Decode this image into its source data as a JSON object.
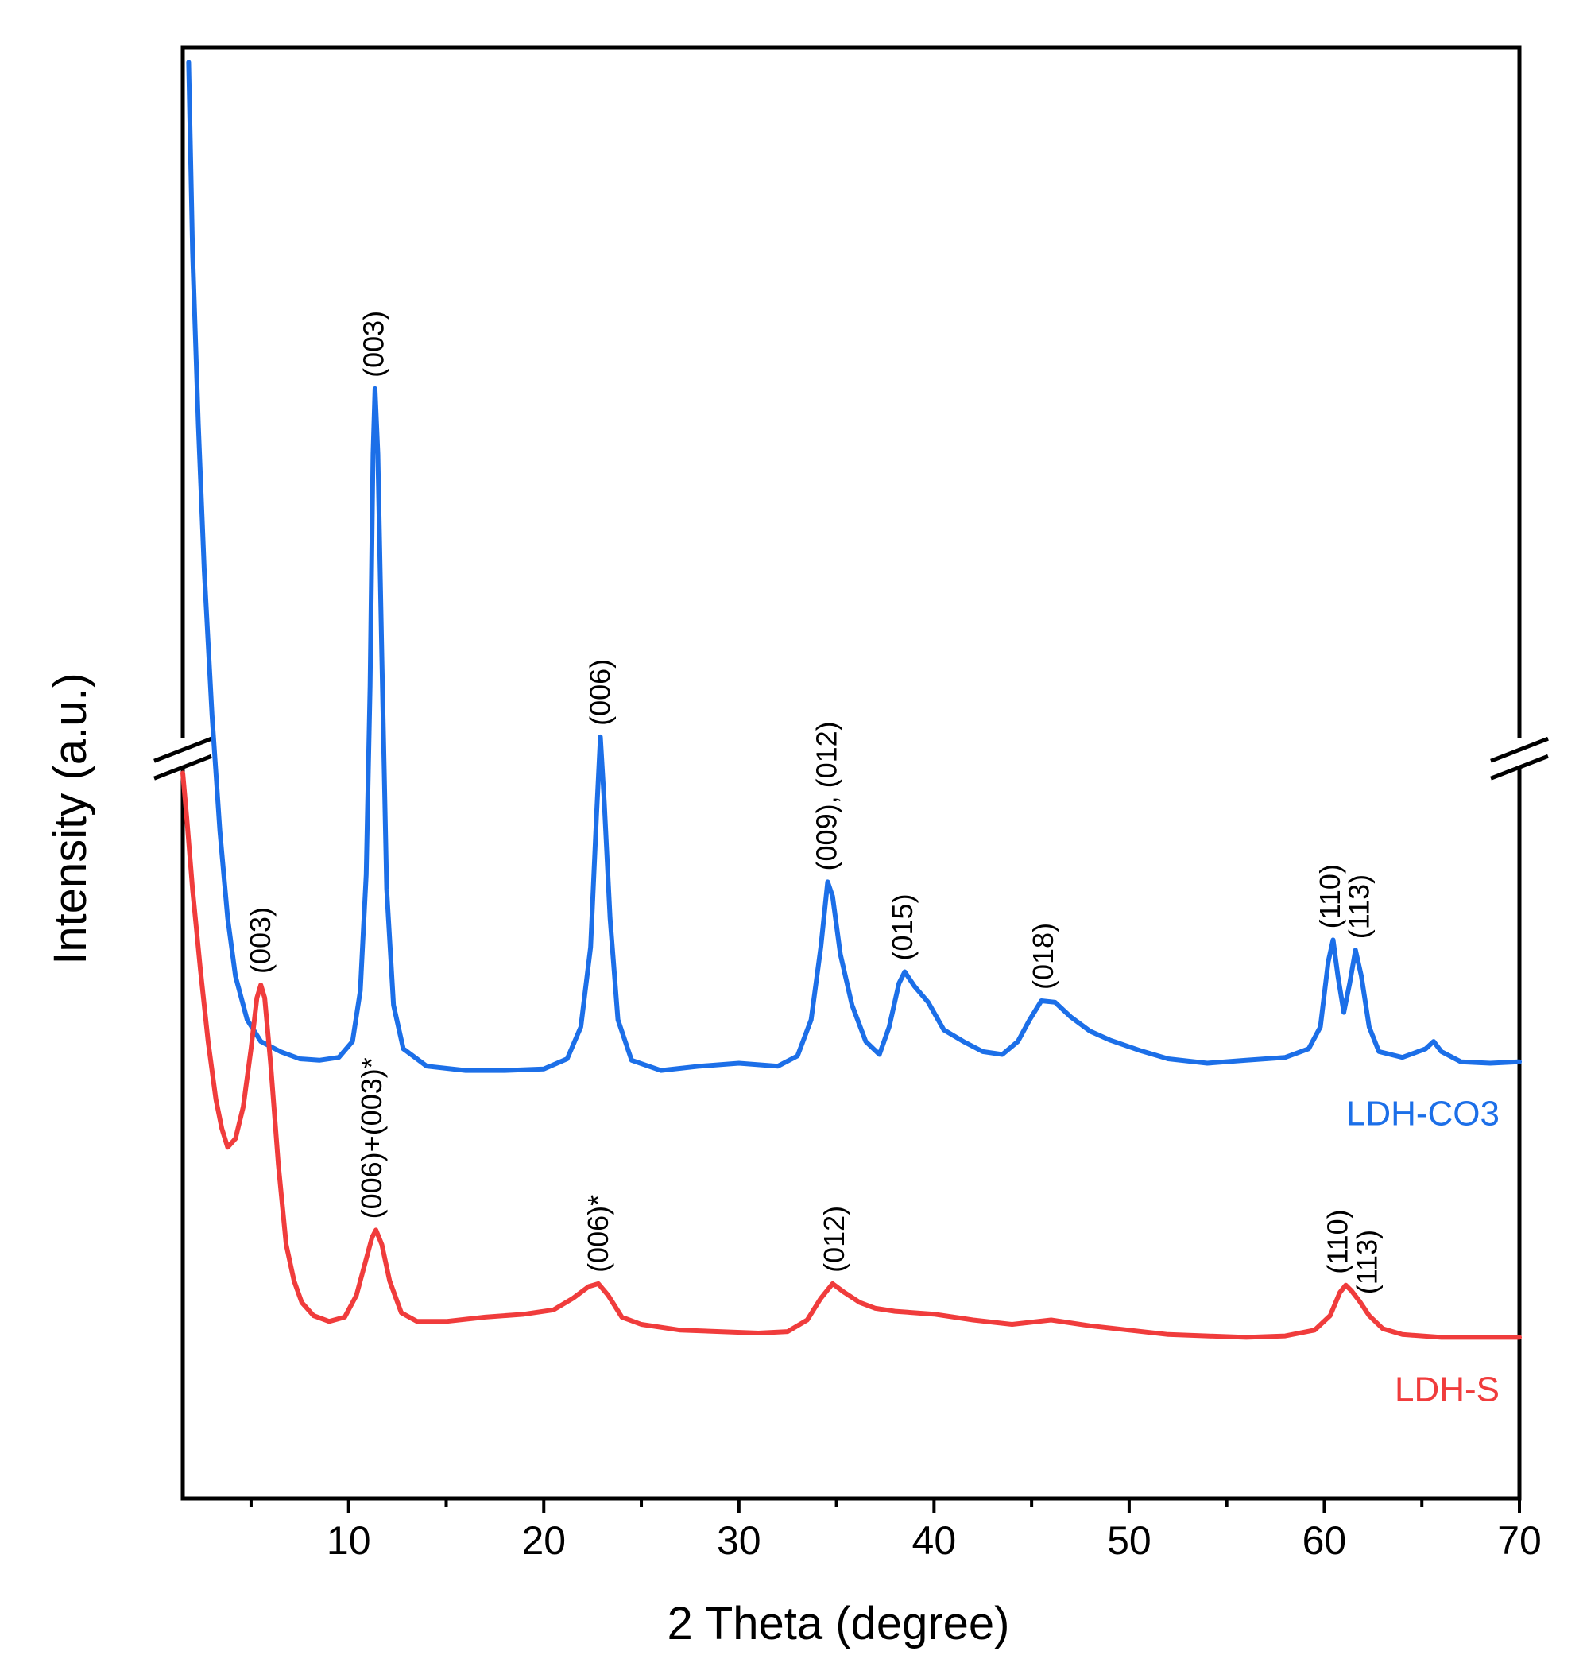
{
  "chart_data": {
    "type": "line",
    "xlabel": "2 Theta (degree)",
    "ylabel": "Intensity (a.u.)",
    "xlim": [
      1.5,
      70
    ],
    "ylim": [
      0,
      100
    ],
    "xticks": [
      10,
      20,
      30,
      40,
      50,
      60,
      70
    ],
    "y_axis_break": true,
    "series": [
      {
        "name": "LDH-CO3",
        "color": "#1C6FE8",
        "points": [
          [
            1.8,
            99
          ],
          [
            2.0,
            86
          ],
          [
            2.3,
            74
          ],
          [
            2.6,
            64
          ],
          [
            3.0,
            54
          ],
          [
            3.4,
            46
          ],
          [
            3.8,
            40
          ],
          [
            4.2,
            36
          ],
          [
            4.8,
            33
          ],
          [
            5.5,
            31.5
          ],
          [
            6.5,
            30.8
          ],
          [
            7.5,
            30.3
          ],
          [
            8.5,
            30.2
          ],
          [
            9.5,
            30.4
          ],
          [
            10.2,
            31.5
          ],
          [
            10.6,
            35
          ],
          [
            10.9,
            43
          ],
          [
            11.1,
            56
          ],
          [
            11.25,
            72
          ],
          [
            11.35,
            76.5
          ],
          [
            11.5,
            72
          ],
          [
            11.7,
            58
          ],
          [
            11.95,
            42
          ],
          [
            12.3,
            34
          ],
          [
            12.8,
            31
          ],
          [
            14,
            29.8
          ],
          [
            16,
            29.5
          ],
          [
            18,
            29.5
          ],
          [
            20,
            29.6
          ],
          [
            21.2,
            30.3
          ],
          [
            21.9,
            32.5
          ],
          [
            22.4,
            38
          ],
          [
            22.7,
            47
          ],
          [
            22.9,
            52.5
          ],
          [
            23.1,
            48
          ],
          [
            23.4,
            40
          ],
          [
            23.8,
            33
          ],
          [
            24.5,
            30.2
          ],
          [
            26,
            29.5
          ],
          [
            28,
            29.8
          ],
          [
            30,
            30
          ],
          [
            32,
            29.8
          ],
          [
            33,
            30.5
          ],
          [
            33.7,
            33
          ],
          [
            34.2,
            38
          ],
          [
            34.55,
            42.5
          ],
          [
            34.8,
            41.5
          ],
          [
            35.2,
            37.5
          ],
          [
            35.8,
            34
          ],
          [
            36.5,
            31.5
          ],
          [
            37.2,
            30.6
          ],
          [
            37.7,
            32.5
          ],
          [
            38.2,
            35.5
          ],
          [
            38.5,
            36.3
          ],
          [
            39,
            35.3
          ],
          [
            39.7,
            34.2
          ],
          [
            40.5,
            32.3
          ],
          [
            41.5,
            31.5
          ],
          [
            42.5,
            30.8
          ],
          [
            43.5,
            30.6
          ],
          [
            44.3,
            31.5
          ],
          [
            44.9,
            33
          ],
          [
            45.5,
            34.3
          ],
          [
            46.2,
            34.2
          ],
          [
            47,
            33.2
          ],
          [
            48,
            32.2
          ],
          [
            49,
            31.6
          ],
          [
            50.5,
            30.9
          ],
          [
            52,
            30.3
          ],
          [
            54,
            30
          ],
          [
            56,
            30.2
          ],
          [
            58,
            30.4
          ],
          [
            59.2,
            31
          ],
          [
            59.8,
            32.5
          ],
          [
            60.2,
            37
          ],
          [
            60.45,
            38.5
          ],
          [
            60.7,
            36
          ],
          [
            61,
            33.5
          ],
          [
            61.3,
            35.5
          ],
          [
            61.6,
            37.8
          ],
          [
            61.9,
            36
          ],
          [
            62.3,
            32.5
          ],
          [
            62.8,
            30.8
          ],
          [
            64,
            30.4
          ],
          [
            65.2,
            31
          ],
          [
            65.6,
            31.5
          ],
          [
            66,
            30.8
          ],
          [
            67,
            30.1
          ],
          [
            68.5,
            30
          ],
          [
            70,
            30.1
          ]
        ]
      },
      {
        "name": "LDH-S",
        "color": "#F03C3C",
        "points": [
          [
            1.5,
            50
          ],
          [
            1.7,
            47
          ],
          [
            2.0,
            42
          ],
          [
            2.4,
            36.5
          ],
          [
            2.8,
            31.5
          ],
          [
            3.2,
            27.5
          ],
          [
            3.5,
            25.5
          ],
          [
            3.8,
            24.2
          ],
          [
            4.2,
            24.8
          ],
          [
            4.6,
            27
          ],
          [
            5.0,
            31
          ],
          [
            5.3,
            34.5
          ],
          [
            5.5,
            35.4
          ],
          [
            5.7,
            34.5
          ],
          [
            6.0,
            30
          ],
          [
            6.4,
            23
          ],
          [
            6.8,
            17.5
          ],
          [
            7.2,
            15
          ],
          [
            7.6,
            13.5
          ],
          [
            8.2,
            12.6
          ],
          [
            9,
            12.2
          ],
          [
            9.8,
            12.5
          ],
          [
            10.4,
            14
          ],
          [
            10.9,
            16.5
          ],
          [
            11.2,
            18
          ],
          [
            11.4,
            18.5
          ],
          [
            11.7,
            17.5
          ],
          [
            12.1,
            15
          ],
          [
            12.7,
            12.8
          ],
          [
            13.5,
            12.2
          ],
          [
            15,
            12.2
          ],
          [
            17,
            12.5
          ],
          [
            19,
            12.7
          ],
          [
            20.5,
            13
          ],
          [
            21.5,
            13.8
          ],
          [
            22.3,
            14.6
          ],
          [
            22.8,
            14.8
          ],
          [
            23.3,
            14
          ],
          [
            24,
            12.5
          ],
          [
            25,
            12
          ],
          [
            27,
            11.6
          ],
          [
            29,
            11.5
          ],
          [
            31,
            11.4
          ],
          [
            32.5,
            11.5
          ],
          [
            33.5,
            12.3
          ],
          [
            34.2,
            13.8
          ],
          [
            34.8,
            14.8
          ],
          [
            35.4,
            14.2
          ],
          [
            36.2,
            13.5
          ],
          [
            37,
            13.1
          ],
          [
            38,
            12.9
          ],
          [
            40,
            12.7
          ],
          [
            42,
            12.3
          ],
          [
            44,
            12
          ],
          [
            46,
            12.3
          ],
          [
            48,
            11.9
          ],
          [
            50,
            11.6
          ],
          [
            52,
            11.3
          ],
          [
            54,
            11.2
          ],
          [
            56,
            11.1
          ],
          [
            58,
            11.2
          ],
          [
            59.5,
            11.6
          ],
          [
            60.3,
            12.6
          ],
          [
            60.8,
            14.2
          ],
          [
            61.1,
            14.7
          ],
          [
            61.4,
            14.3
          ],
          [
            61.8,
            13.6
          ],
          [
            62.3,
            12.6
          ],
          [
            63,
            11.7
          ],
          [
            64,
            11.3
          ],
          [
            66,
            11.1
          ],
          [
            70,
            11.1
          ]
        ]
      }
    ],
    "annotations": [
      {
        "text": "(003)",
        "x": 11.4,
        "series": "LDH-CO3"
      },
      {
        "text": "(006)",
        "x": 23.0,
        "series": "LDH-CO3"
      },
      {
        "text": "(009), (012)",
        "x": 34.6,
        "series": "LDH-CO3"
      },
      {
        "text": "(015)",
        "x": 38.5,
        "series": "LDH-CO3"
      },
      {
        "text": "(018)",
        "x": 45.7,
        "series": "LDH-CO3"
      },
      {
        "text": "(110)",
        "x": 60.4,
        "series": "LDH-CO3"
      },
      {
        "text": "(113)",
        "x": 61.9,
        "series": "LDH-CO3"
      },
      {
        "text": "(003)",
        "x": 5.6,
        "series": "LDH-S"
      },
      {
        "text": "(006)+(003)*",
        "x": 11.3,
        "series": "LDH-S"
      },
      {
        "text": "(006)*",
        "x": 22.9,
        "series": "LDH-S"
      },
      {
        "text": "(012)",
        "x": 35.0,
        "series": "LDH-S"
      },
      {
        "text": "(110)",
        "x": 60.8,
        "series": "LDH-S"
      },
      {
        "text": "(113)",
        "x": 62.3,
        "series": "LDH-S"
      }
    ],
    "legend": [
      {
        "text": "LDH-CO3",
        "series": "LDH-CO3",
        "placement": "right, below series"
      },
      {
        "text": "LDH-S",
        "series": "LDH-S",
        "placement": "right, below series"
      }
    ]
  }
}
